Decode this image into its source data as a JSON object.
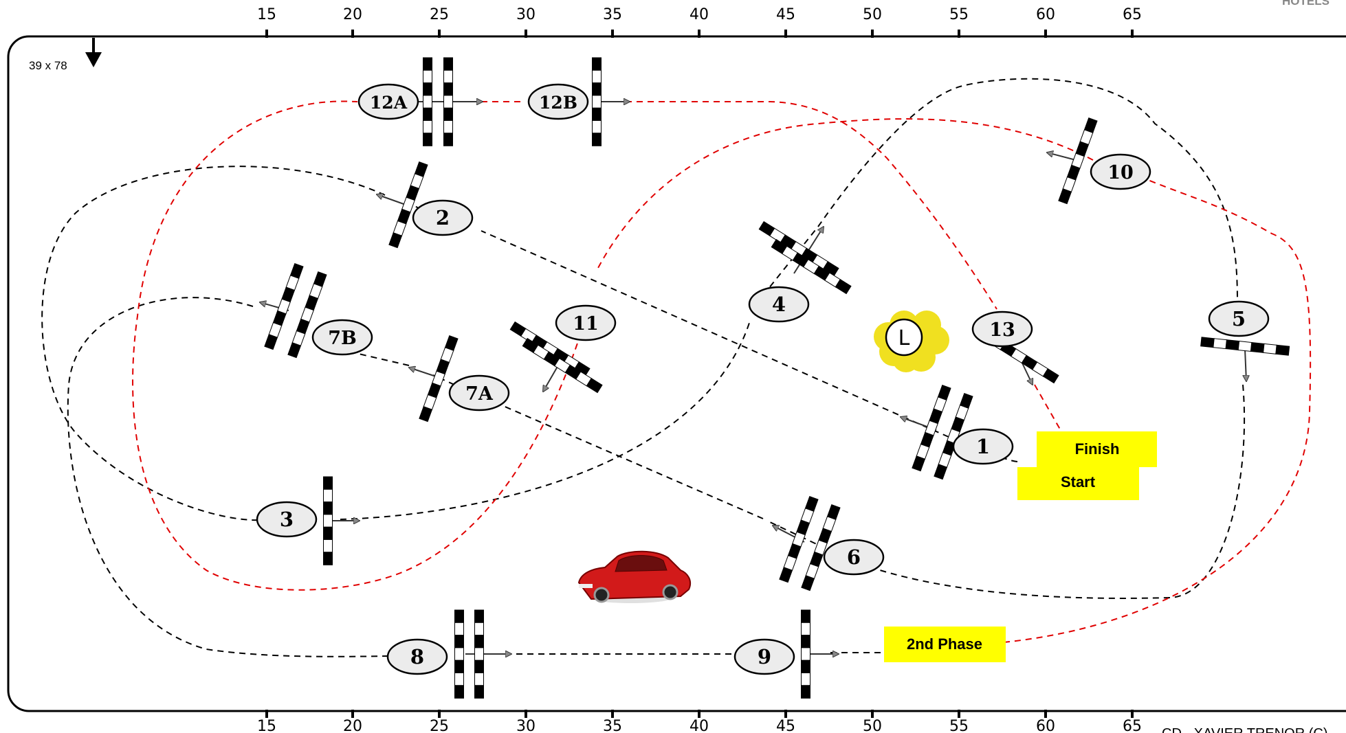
{
  "corner_text": "HOTELS",
  "footer_text": "CD - XAVIER TRENOR (C)",
  "arena": {
    "size_label": "39 x 78"
  },
  "ruler": {
    "ticks": [
      "15",
      "20",
      "25",
      "30",
      "35",
      "40",
      "45",
      "50",
      "55",
      "60",
      "65"
    ]
  },
  "obstacles": [
    {
      "id": "12A"
    },
    {
      "id": "12B"
    },
    {
      "id": "10"
    },
    {
      "id": "2"
    },
    {
      "id": "4"
    },
    {
      "id": "11"
    },
    {
      "id": "7B"
    },
    {
      "id": "7A"
    },
    {
      "id": "13"
    },
    {
      "id": "5"
    },
    {
      "id": "1"
    },
    {
      "id": "3"
    },
    {
      "id": "6"
    },
    {
      "id": "8"
    },
    {
      "id": "9"
    }
  ],
  "labels": {
    "finish": "Finish",
    "start": "Start",
    "second_phase": "2nd Phase",
    "judge": "L"
  },
  "colors": {
    "phase1_path": "#000000",
    "phase2_path": "#e00000",
    "label_box": "#ffff00",
    "judge_flower": "#f0e020"
  }
}
